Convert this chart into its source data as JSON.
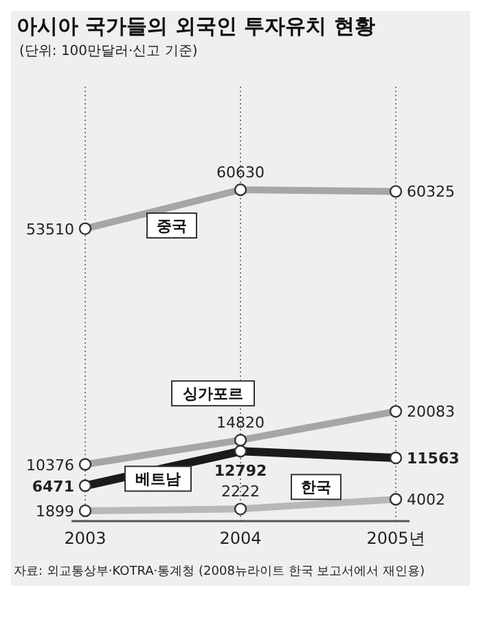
{
  "chart_data": {
    "type": "line",
    "title": "아시아 국가들의 외국인 투자유치 현황",
    "subtitle": "(단위: 100만달러·신고 기준)",
    "categories": [
      "2003",
      "2004",
      "2005년"
    ],
    "series": [
      {
        "name": "중국",
        "color": "#a6a6a6",
        "values": [
          53510,
          60630,
          60325
        ]
      },
      {
        "name": "싱가포르",
        "color": "#a6a6a6",
        "values": [
          10376,
          14820,
          20083
        ]
      },
      {
        "name": "한국",
        "color": "#1a1a1a",
        "values": [
          6471,
          12792,
          11563
        ]
      },
      {
        "name": "베트남",
        "color": "#b8b8b8",
        "values": [
          1899,
          2222,
          4002
        ]
      }
    ],
    "data_labels": true,
    "marker": "circle",
    "grid": "x",
    "legend": false,
    "tick_labels": "x",
    "annotations": [
      "자료: 외교통상부·KOTRA·통계청 (2008뉴라이트 한국 보고서에서 재인용)"
    ]
  }
}
